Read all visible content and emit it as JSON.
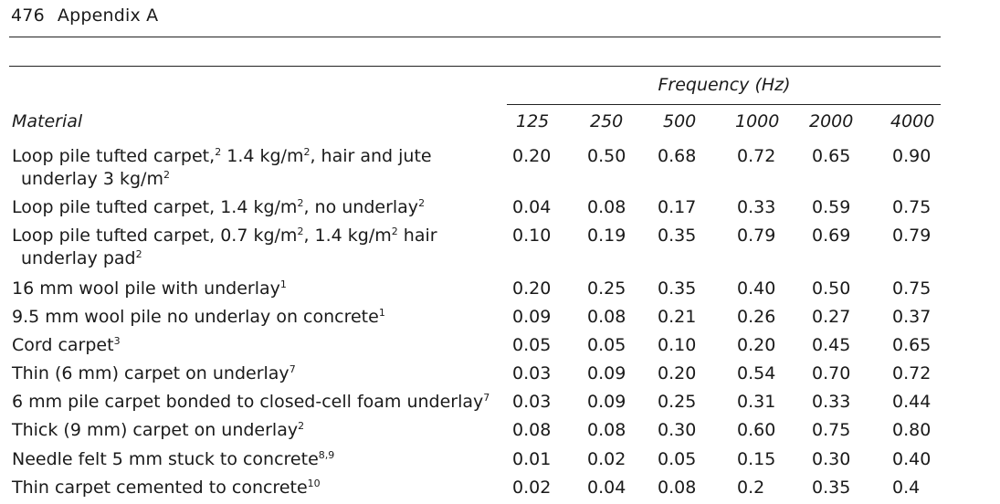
{
  "header": {
    "page_number": "476",
    "section": "Appendix A"
  },
  "table": {
    "group_header": "Frequency (Hz)",
    "material_header": "Material",
    "frequencies": [
      "125",
      "250",
      "500",
      "1000",
      "2000",
      "4000"
    ],
    "rows": [
      {
        "line1": "Loop pile tufted carpet,",
        "sup1": "2",
        "line1b": " 1.4 kg/m",
        "sup1b": "2",
        "line1c": ", hair and jute",
        "line2": "underlay 3 kg/m",
        "sup2": "2",
        "values": [
          "0.20",
          "0.50",
          "0.68",
          "0.72",
          "0.65",
          "0.90"
        ]
      },
      {
        "line1": "Loop pile tufted carpet, 1.4 kg/m",
        "sup1": "2",
        "line1b": ", no underlay",
        "sup1b": "2",
        "line1c": "",
        "line2": "",
        "sup2": "",
        "values": [
          "0.04",
          "0.08",
          "0.17",
          "0.33",
          "0.59",
          "0.75"
        ]
      },
      {
        "line1": "Loop pile tufted carpet, 0.7 kg/m",
        "sup1": "2",
        "line1b": ", 1.4 kg/m",
        "sup1b": "2",
        "line1c": " hair",
        "line2": "underlay pad",
        "sup2": "2",
        "values": [
          "0.10",
          "0.19",
          "0.35",
          "0.79",
          "0.69",
          "0.79"
        ]
      },
      {
        "line1": "16 mm wool pile with underlay",
        "sup1": "1",
        "line1b": "",
        "sup1b": "",
        "line1c": "",
        "line2": "",
        "sup2": "",
        "values": [
          "0.20",
          "0.25",
          "0.35",
          "0.40",
          "0.50",
          "0.75"
        ]
      },
      {
        "line1": "9.5 mm wool pile no underlay on concrete",
        "sup1": "1",
        "line1b": "",
        "sup1b": "",
        "line1c": "",
        "line2": "",
        "sup2": "",
        "values": [
          "0.09",
          "0.08",
          "0.21",
          "0.26",
          "0.27",
          "0.37"
        ]
      },
      {
        "line1": "Cord carpet",
        "sup1": "3",
        "line1b": "",
        "sup1b": "",
        "line1c": "",
        "line2": "",
        "sup2": "",
        "values": [
          "0.05",
          "0.05",
          "0.10",
          "0.20",
          "0.45",
          "0.65"
        ]
      },
      {
        "line1": "Thin (6 mm) carpet on underlay",
        "sup1": "7",
        "line1b": "",
        "sup1b": "",
        "line1c": "",
        "line2": "",
        "sup2": "",
        "values": [
          "0.03",
          "0.09",
          "0.20",
          "0.54",
          "0.70",
          "0.72"
        ]
      },
      {
        "line1": "6 mm pile carpet bonded to closed-cell foam underlay",
        "sup1": "7",
        "line1b": "",
        "sup1b": "",
        "line1c": "",
        "line2": "",
        "sup2": "",
        "values": [
          "0.03",
          "0.09",
          "0.25",
          "0.31",
          "0.33",
          "0.44"
        ]
      },
      {
        "line1": "Thick (9 mm) carpet on underlay",
        "sup1": "2",
        "line1b": "",
        "sup1b": "",
        "line1c": "",
        "line2": "",
        "sup2": "",
        "values": [
          "0.08",
          "0.08",
          "0.30",
          "0.60",
          "0.75",
          "0.80"
        ]
      },
      {
        "line1": "Needle felt 5 mm stuck to concrete",
        "sup1": "8,9",
        "line1b": "",
        "sup1b": "",
        "line1c": "",
        "line2": "",
        "sup2": "",
        "values": [
          "0.01",
          "0.02",
          "0.05",
          "0.15",
          "0.30",
          "0.40"
        ]
      },
      {
        "line1": "Thin carpet cemented to concrete",
        "sup1": "10",
        "line1b": "",
        "sup1b": "",
        "line1c": "",
        "line2": "",
        "sup2": "",
        "values": [
          "0.02",
          "0.04",
          "0.08",
          "0.2",
          "0.35",
          "0.4"
        ]
      }
    ]
  }
}
